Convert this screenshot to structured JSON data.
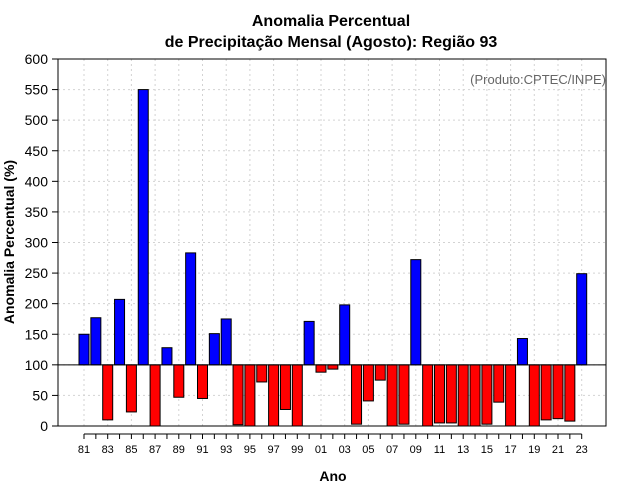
{
  "chart_data": {
    "type": "bar",
    "title_line1": "Anomalia Percentual",
    "title_line2": "de Precipitação Mensal (Agosto): Região 93",
    "xlabel": "Ano",
    "ylabel": "Anomalia Percentual (%)",
    "annotation": "(Produto:CPTEC/INPE)",
    "baseline": 100,
    "ylim": [
      0,
      600
    ],
    "yticks": [
      0,
      50,
      100,
      150,
      200,
      250,
      300,
      350,
      400,
      450,
      500,
      550,
      600
    ],
    "xtick_labels": [
      "81",
      "83",
      "85",
      "87",
      "89",
      "91",
      "93",
      "95",
      "97",
      "99",
      "01",
      "03",
      "05",
      "07",
      "09",
      "11",
      "13",
      "15",
      "17",
      "19",
      "21",
      "23"
    ],
    "categories": [
      "81",
      "82",
      "83",
      "84",
      "85",
      "86",
      "87",
      "88",
      "89",
      "90",
      "91",
      "92",
      "93",
      "94",
      "95",
      "96",
      "97",
      "98",
      "99",
      "00",
      "01",
      "02",
      "03",
      "04",
      "05",
      "06",
      "07",
      "08",
      "09",
      "10",
      "11",
      "12",
      "13",
      "14",
      "15",
      "16",
      "17",
      "18",
      "19",
      "20",
      "21",
      "22",
      "23"
    ],
    "values": [
      150,
      177,
      10,
      207,
      23,
      550,
      0,
      128,
      47,
      283,
      45,
      151,
      175,
      2,
      0,
      72,
      0,
      27,
      0,
      171,
      88,
      93,
      198,
      3,
      41,
      75,
      0,
      3,
      272,
      0,
      5,
      5,
      0,
      0,
      3,
      39,
      0,
      143,
      0,
      10,
      12,
      8,
      249
    ],
    "colors": {
      "positive": "#0000ff",
      "negative": "#ff0000",
      "grid": "#d3d3d3",
      "axis": "#000000"
    },
    "grid": true
  }
}
